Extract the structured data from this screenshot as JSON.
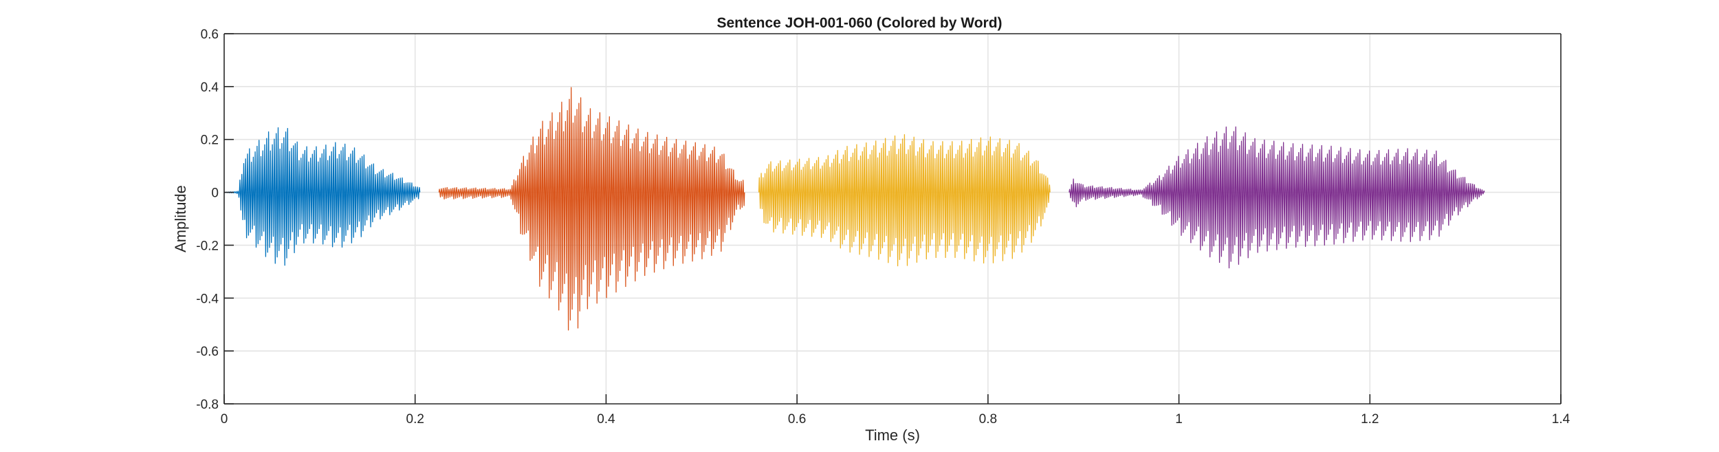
{
  "chart_data": {
    "type": "line",
    "title": "Sentence JOH-001-060 (Colored by Word)",
    "xlabel": "Time (s)",
    "ylabel": "Amplitude",
    "xlim": [
      0,
      1.4
    ],
    "ylim": [
      -0.8,
      0.6
    ],
    "x_ticks": [
      0,
      0.2,
      0.4,
      0.6,
      0.8,
      1,
      1.2,
      1.4
    ],
    "x_tick_labels": [
      "0",
      "0.2",
      "0.4",
      "0.6",
      "0.8",
      "1",
      "1.2",
      "1.4"
    ],
    "y_ticks": [
      -0.8,
      -0.6,
      -0.4,
      -0.2,
      0,
      0.2,
      0.4,
      0.6
    ],
    "y_tick_labels": [
      "-0.8",
      "-0.6",
      "-0.4",
      "-0.2",
      "0",
      "0.2",
      "0.4",
      "0.6"
    ],
    "grid": true,
    "box": true,
    "series": [
      {
        "color": "#0072BD",
        "x_range": [
          0,
          0.205
        ],
        "envelope": [
          [
            0,
            0.0
          ],
          [
            0.015,
            0.005
          ],
          [
            0.02,
            0.15
          ],
          [
            0.035,
            0.2
          ],
          [
            0.05,
            0.25
          ],
          [
            0.065,
            0.26
          ],
          [
            0.08,
            0.18
          ],
          [
            0.1,
            0.18
          ],
          [
            0.12,
            0.2
          ],
          [
            0.14,
            0.17
          ],
          [
            0.16,
            0.1
          ],
          [
            0.18,
            0.07
          ],
          [
            0.205,
            0.02
          ]
        ],
        "peak_max": 0.26,
        "peak_min": -0.29
      },
      {
        "color": "#D95319",
        "x_range": [
          0.225,
          0.545
        ],
        "envelope": [
          [
            0.225,
            0.02
          ],
          [
            0.24,
            0.02
          ],
          [
            0.3,
            0.015
          ],
          [
            0.31,
            0.12
          ],
          [
            0.33,
            0.28
          ],
          [
            0.35,
            0.35
          ],
          [
            0.365,
            0.44
          ],
          [
            0.38,
            0.35
          ],
          [
            0.41,
            0.3
          ],
          [
            0.44,
            0.25
          ],
          [
            0.47,
            0.22
          ],
          [
            0.5,
            0.2
          ],
          [
            0.52,
            0.18
          ],
          [
            0.54,
            0.05
          ]
        ],
        "peak_max": 0.44,
        "peak_min": -0.61
      },
      {
        "color": "#EDB120",
        "x_range": [
          0.56,
          0.865
        ],
        "envelope": [
          [
            0.56,
            0.06
          ],
          [
            0.57,
            0.12
          ],
          [
            0.6,
            0.13
          ],
          [
            0.63,
            0.14
          ],
          [
            0.65,
            0.18
          ],
          [
            0.68,
            0.2
          ],
          [
            0.71,
            0.23
          ],
          [
            0.74,
            0.2
          ],
          [
            0.77,
            0.2
          ],
          [
            0.8,
            0.22
          ],
          [
            0.83,
            0.2
          ],
          [
            0.85,
            0.14
          ],
          [
            0.865,
            0.04
          ]
        ],
        "peak_max": 0.24,
        "peak_min": -0.31
      },
      {
        "color": "#7E2F8E",
        "x_range": [
          0.885,
          1.32
        ],
        "envelope": [
          [
            0.885,
            0.01
          ],
          [
            0.89,
            0.06
          ],
          [
            0.9,
            0.03
          ],
          [
            0.96,
            0.01
          ],
          [
            0.98,
            0.07
          ],
          [
            1.0,
            0.15
          ],
          [
            1.03,
            0.23
          ],
          [
            1.055,
            0.28
          ],
          [
            1.08,
            0.22
          ],
          [
            1.12,
            0.2
          ],
          [
            1.16,
            0.19
          ],
          [
            1.2,
            0.17
          ],
          [
            1.24,
            0.18
          ],
          [
            1.27,
            0.17
          ],
          [
            1.29,
            0.09
          ],
          [
            1.31,
            0.03
          ],
          [
            1.32,
            0.005
          ]
        ],
        "peak_max": 0.28,
        "peak_min": -0.32
      }
    ]
  }
}
